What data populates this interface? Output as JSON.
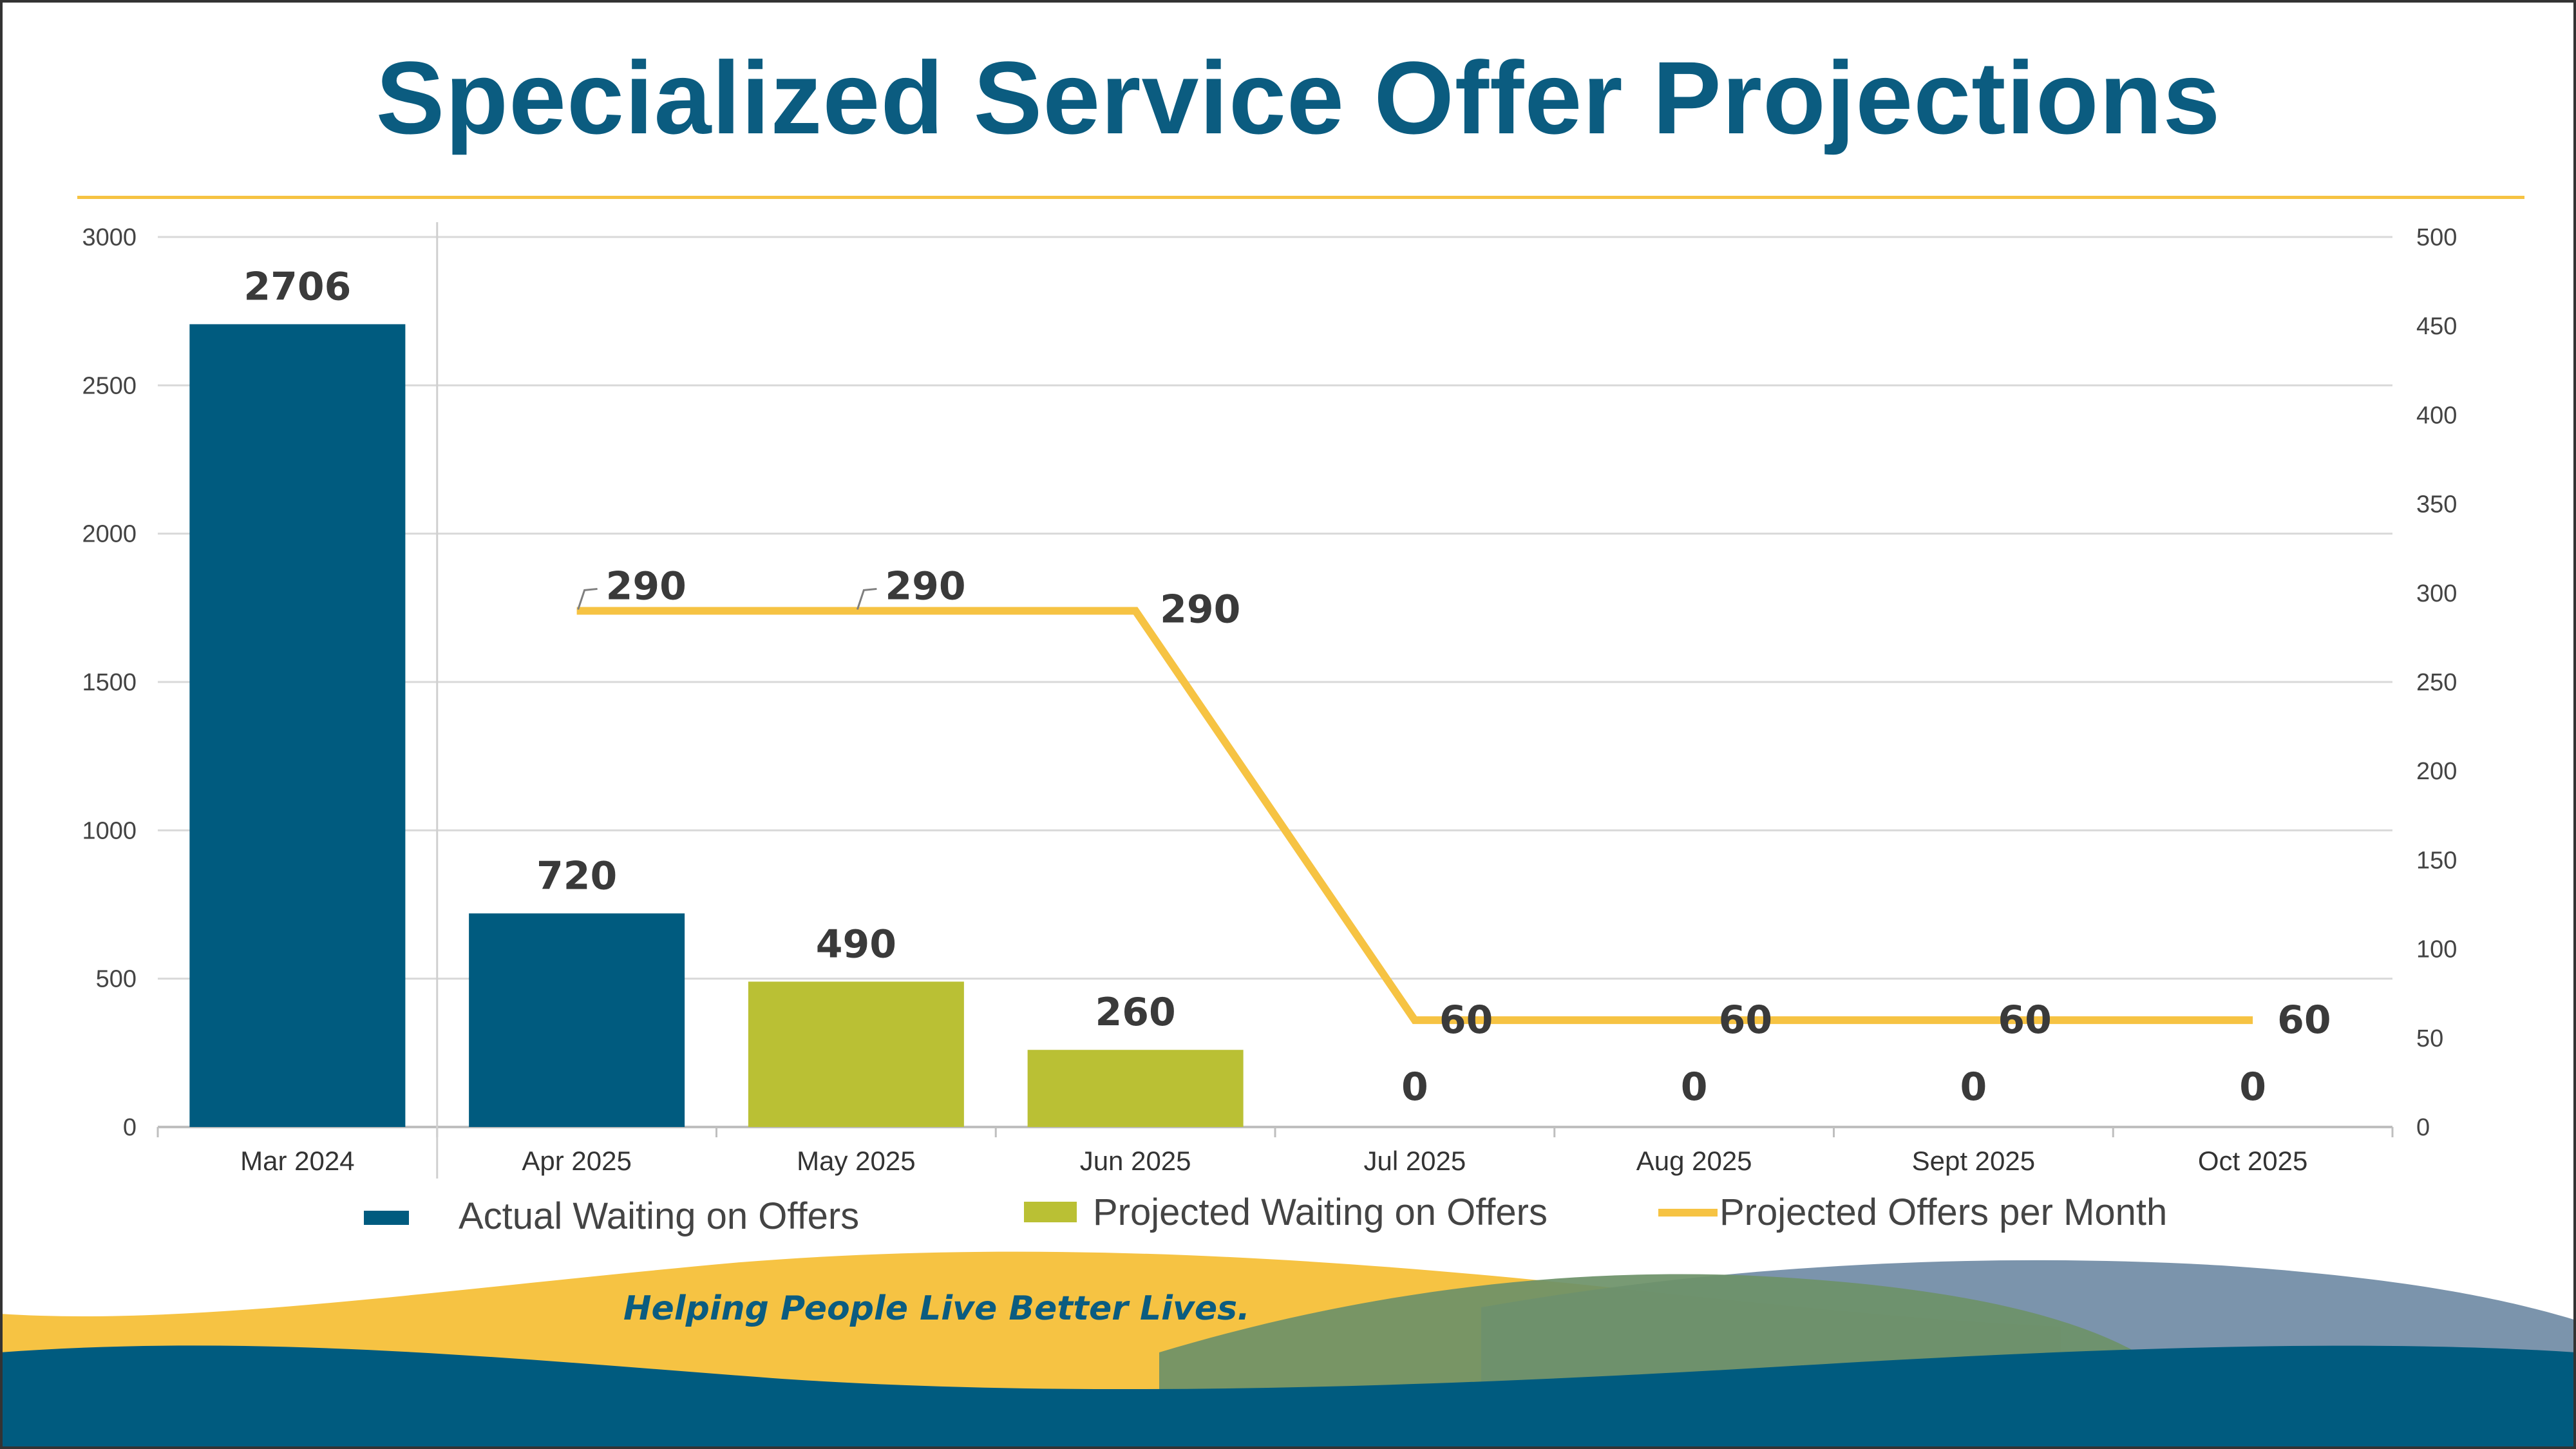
{
  "title": "Specialized Service Offer Projections",
  "tagline": "Helping People Live Better Lives.",
  "colors": {
    "actual": "#005b7f",
    "projected": "#bac034",
    "line": "#f6c343",
    "title": "#0b5c80",
    "rule": "#f6c343"
  },
  "chart_data": {
    "type": "bar",
    "categories": [
      "Mar 2024",
      "Apr 2025",
      "May 2025",
      "Jun 2025",
      "Jul 2025",
      "Aug 2025",
      "Sept 2025",
      "Oct 2025"
    ],
    "series": [
      {
        "name": "Actual Waiting on Offers",
        "type": "bar",
        "axis": "left",
        "color": "#005b7f",
        "values": [
          2706,
          720,
          null,
          null,
          null,
          null,
          null,
          null
        ],
        "labels": [
          "2706",
          "720",
          null,
          null,
          null,
          null,
          null,
          null
        ]
      },
      {
        "name": "Projected Waiting on Offers",
        "type": "bar",
        "axis": "left",
        "color": "#bac034",
        "values": [
          null,
          null,
          490,
          260,
          0,
          0,
          0,
          0
        ],
        "labels": [
          null,
          null,
          "490",
          "260",
          "0",
          "0",
          "0",
          "0"
        ]
      },
      {
        "name": "Projected Offers per Month",
        "type": "line",
        "axis": "right",
        "color": "#f6c343",
        "values": [
          null,
          290,
          290,
          290,
          60,
          60,
          60,
          60
        ],
        "labels": [
          null,
          "290",
          "290",
          "290",
          "60",
          "60",
          "60",
          "60"
        ]
      }
    ],
    "y_left": {
      "min": 0,
      "max": 3000,
      "ticks": [
        "0",
        "500",
        "1000",
        "1500",
        "2000",
        "2500",
        "3000"
      ]
    },
    "y_right": {
      "min": 0,
      "max": 500,
      "ticks": [
        "0",
        "50",
        "100",
        "150",
        "200",
        "250",
        "300",
        "350",
        "400",
        "450",
        "500"
      ]
    },
    "grid": true,
    "legend": {
      "position": "bottom",
      "items": [
        {
          "label": "Actual Waiting on Offers",
          "kind": "bar",
          "color": "#005b7f"
        },
        {
          "label": "Projected Waiting on Offers",
          "kind": "bar",
          "color": "#bac034"
        },
        {
          "label": "Projected Offers per Month",
          "kind": "line",
          "color": "#f6c343"
        }
      ]
    }
  }
}
